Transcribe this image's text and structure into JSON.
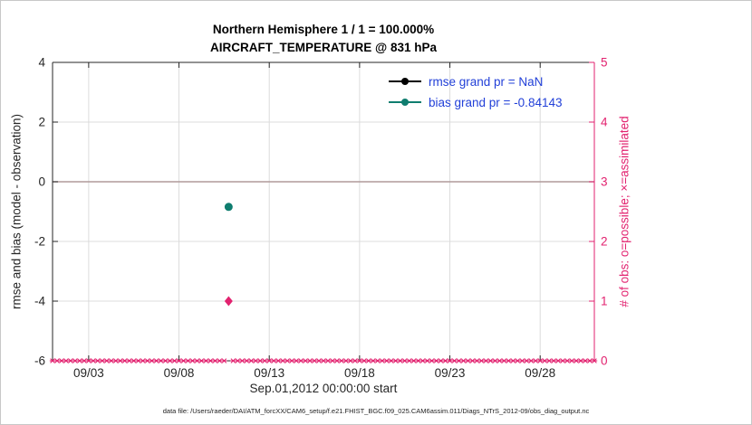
{
  "title": {
    "line1": "Northern Hemisphere 1 / 1 = 100.000%",
    "line2": "AIRCRAFT_TEMPERATURE @ 831 hPa"
  },
  "axes": {
    "left_label": "rmse and bias (model - observation)",
    "right_label": "# of obs: o=possible; ×=assimilated",
    "x_label": "Sep.01,2012 00:00:00 start"
  },
  "legend": [
    {
      "label": "rmse grand pr = NaN",
      "color": "#000000"
    },
    {
      "label": "bias grand pr = -0.84143",
      "color": "#0f7d6f"
    }
  ],
  "caption": "data file: /Users/raeder/DAI/ATM_forcXX/CAM6_setup/f.e21.FHIST_BGC.f09_025.CAM6assim.011/Diags_NTrS_2012-09/obs_diag_output.nc",
  "colors": {
    "obs": "#e2226f",
    "bias": "#0f7d6f",
    "rmse": "#000000",
    "zero_line": "#b09a9a",
    "grid": "#dcdcdc",
    "axis": "#262626",
    "tick_text": "#262626",
    "legend_text": "#2240d8",
    "background": "#ffffff"
  },
  "chart_data": {
    "type": "scatter",
    "title": "Northern Hemisphere 1 / 1 = 100.000% — AIRCRAFT_TEMPERATURE @ 831 hPa",
    "x_axis": {
      "start_date": "Sep.01,2012 00:00:00",
      "range_days": [
        0,
        30
      ],
      "ticks": [
        {
          "day": 2,
          "label": "09/03"
        },
        {
          "day": 7,
          "label": "09/08"
        },
        {
          "day": 12,
          "label": "09/13"
        },
        {
          "day": 17,
          "label": "09/18"
        },
        {
          "day": 22,
          "label": "09/23"
        },
        {
          "day": 27,
          "label": "09/28"
        }
      ]
    },
    "y_left": {
      "label": "rmse and bias (model - observation)",
      "range": [
        -6,
        4
      ],
      "ticks": [
        -6,
        -4,
        -2,
        0,
        2,
        4
      ]
    },
    "y_right": {
      "label": "# of obs: o=possible; ×=assimilated",
      "range": [
        0,
        5
      ],
      "ticks": [
        0,
        1,
        2,
        3,
        4,
        5
      ]
    },
    "zero_line": 0,
    "series": [
      {
        "name": "rmse",
        "axis": "left",
        "color": "#000000",
        "marker": "circle",
        "grand_value": "NaN",
        "points": []
      },
      {
        "name": "bias",
        "axis": "left",
        "color": "#0f7d6f",
        "marker": "circle",
        "grand_value": -0.84143,
        "points": [
          {
            "day": 9.75,
            "value": -0.84143
          }
        ]
      },
      {
        "name": "num_obs",
        "axis": "right",
        "color": "#e2226f",
        "marker": "diamond",
        "points": [
          {
            "day": 9.75,
            "value": 1
          }
        ]
      },
      {
        "name": "num_obs_zero_band",
        "axis": "right",
        "color": "#e2226f",
        "marker": "asterisk",
        "start_day": 0,
        "end_day": 30,
        "step_day": 0.25,
        "value": 0,
        "skip_days": [
          9.75
        ]
      }
    ]
  }
}
